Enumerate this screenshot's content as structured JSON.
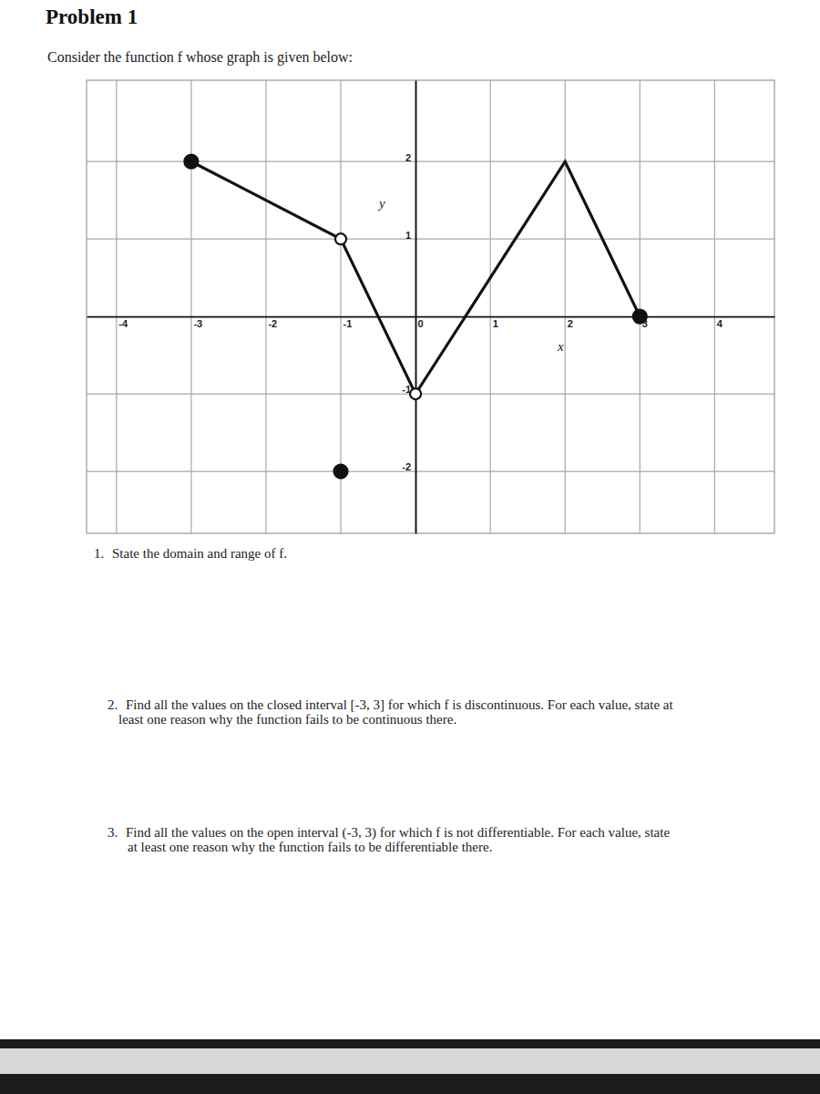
{
  "header": {
    "title": "Problem 1",
    "intro": "Consider the function f whose graph is given below:"
  },
  "chart_data": {
    "type": "line",
    "xlabel": "x",
    "ylabel": "y",
    "xlim": [
      -4.4,
      4.8
    ],
    "ylim": [
      -2.8,
      3.05
    ],
    "xticks": [
      -4,
      -3,
      -2,
      -1,
      0,
      1,
      2,
      3,
      4
    ],
    "yticks": [
      -2,
      -1,
      1,
      2
    ],
    "grid": true,
    "series": [
      {
        "type": "line",
        "line_style": "solid",
        "x": [
          -3,
          -1
        ],
        "values": [
          2,
          1
        ]
      },
      {
        "type": "line",
        "line_style": "solid",
        "x": [
          -1,
          0,
          2,
          3
        ],
        "values": [
          1,
          -1,
          2,
          0
        ]
      },
      {
        "type": "scatter",
        "marker": "filled",
        "x": [
          -3,
          -1,
          3
        ],
        "values": [
          2,
          -2,
          0
        ]
      },
      {
        "type": "scatter",
        "marker": "open",
        "x": [
          -1,
          0
        ],
        "values": [
          1,
          -1
        ]
      }
    ]
  },
  "questions": [
    {
      "number": "1.",
      "lines": [
        "State the domain and range of f."
      ]
    },
    {
      "number": "2.",
      "lines": [
        "Find all the values on the closed interval [-3, 3] for which f is discontinuous. For each value, state at",
        "least one reason why the function fails to be continuous there."
      ]
    },
    {
      "number": "3.",
      "lines": [
        "Find all the values on the open interval (-3, 3) for which f is not differentiable. For each value, state",
        "at least one reason why the function fails to be differentiable there."
      ]
    }
  ]
}
